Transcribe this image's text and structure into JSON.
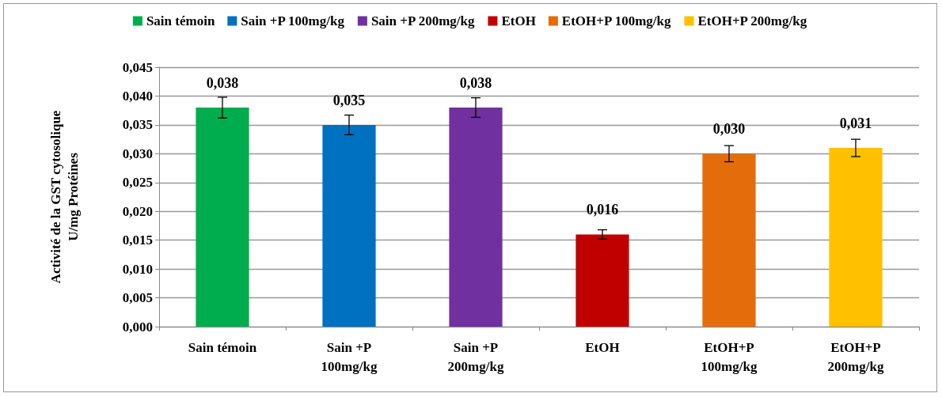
{
  "chart_data": {
    "type": "bar",
    "ylabel": "Activité de la GST cytosolique\nU/mg Protéines",
    "categories": [
      "Sain témoin",
      "Sain +P 100mg/kg",
      "Sain +P 200mg/kg",
      "EtOH",
      "EtOH+P 100mg/kg",
      "EtOH+P 200mg/kg"
    ],
    "stacked": true,
    "series": [
      {
        "name": "Sain témoin",
        "color": "#00ad4e",
        "values": [
          0.038,
          null,
          null,
          null,
          null,
          null
        ],
        "value_labels": [
          "0,038",
          null,
          null,
          null,
          null,
          null
        ],
        "errors": [
          0.0018,
          null,
          null,
          null,
          null,
          null
        ]
      },
      {
        "name": "Sain +P 100mg/kg",
        "color": "#0070c0",
        "values": [
          null,
          0.035,
          null,
          null,
          null,
          null
        ],
        "value_labels": [
          null,
          "0,035",
          null,
          null,
          null,
          null
        ],
        "errors": [
          null,
          0.0017,
          null,
          null,
          null,
          null
        ]
      },
      {
        "name": "Sain +P 200mg/kg",
        "color": "#7030a0",
        "values": [
          null,
          null,
          0.038,
          null,
          null,
          null
        ],
        "value_labels": [
          null,
          null,
          "0,038",
          null,
          null,
          null
        ],
        "errors": [
          null,
          null,
          0.0017,
          null,
          null,
          null
        ]
      },
      {
        "name": "EtOH",
        "color": "#c00000",
        "values": [
          null,
          null,
          null,
          0.016,
          null,
          null
        ],
        "value_labels": [
          null,
          null,
          null,
          "0,016",
          null,
          null
        ],
        "errors": [
          null,
          null,
          null,
          0.0008,
          null,
          null
        ]
      },
      {
        "name": "EtOH+P 100mg/kg",
        "color": "#e46c0a",
        "values": [
          null,
          null,
          null,
          null,
          0.03,
          null
        ],
        "value_labels": [
          null,
          null,
          null,
          null,
          "0,030",
          null
        ],
        "errors": [
          null,
          null,
          null,
          null,
          0.0014,
          null
        ]
      },
      {
        "name": "EtOH+P 200mg/kg",
        "color": "#ffc000",
        "values": [
          null,
          null,
          null,
          null,
          null,
          0.031
        ],
        "value_labels": [
          null,
          null,
          null,
          null,
          null,
          "0,031"
        ],
        "errors": [
          null,
          null,
          null,
          null,
          null,
          0.0015
        ]
      }
    ],
    "ylim": [
      0,
      0.045
    ],
    "yticks": [
      {
        "value": 0,
        "label": "0,000"
      },
      {
        "value": 0.005,
        "label": "0,005"
      },
      {
        "value": 0.01,
        "label": "0,010"
      },
      {
        "value": 0.015,
        "label": "0,015"
      },
      {
        "value": 0.02,
        "label": "0,020"
      },
      {
        "value": 0.025,
        "label": "0,025"
      },
      {
        "value": 0.03,
        "label": "0,030"
      },
      {
        "value": 0.035,
        "label": "0,035"
      },
      {
        "value": 0.04,
        "label": "0,040"
      },
      {
        "value": 0.045,
        "label": "0,045"
      }
    ],
    "grid": "y",
    "legend": "top"
  }
}
